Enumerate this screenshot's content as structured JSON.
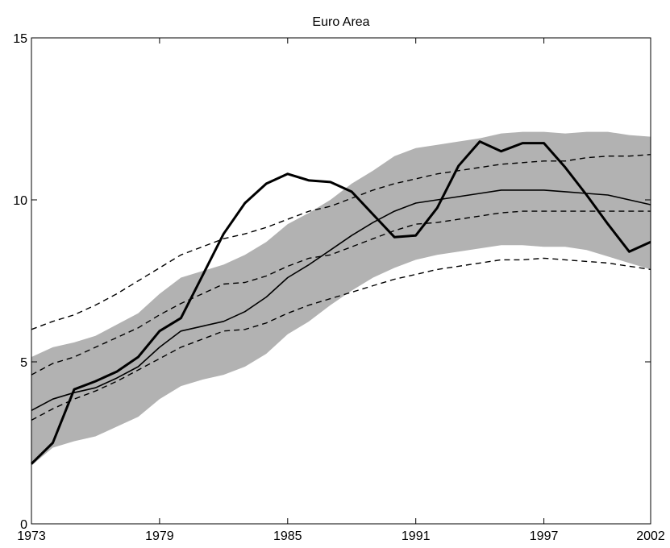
{
  "chart_data": {
    "type": "line",
    "title": "Euro Area",
    "xlabel": "",
    "ylabel": "",
    "xlim": [
      1973,
      2002
    ],
    "ylim": [
      0,
      15
    ],
    "xticks": [
      1973,
      1979,
      1985,
      1991,
      1997,
      2002
    ],
    "yticks": [
      0,
      5,
      10,
      15
    ],
    "grid": false,
    "legend": "none",
    "x": [
      1973,
      1974,
      1975,
      1976,
      1977,
      1978,
      1979,
      1980,
      1981,
      1982,
      1983,
      1984,
      1985,
      1986,
      1987,
      1988,
      1989,
      1990,
      1991,
      1992,
      1993,
      1994,
      1995,
      1996,
      1997,
      1998,
      1999,
      2000,
      2001,
      2002
    ],
    "band": {
      "upper": [
        5.15,
        5.45,
        5.6,
        5.8,
        6.15,
        6.5,
        7.1,
        7.6,
        7.8,
        8.0,
        8.3,
        8.7,
        9.25,
        9.6,
        10.0,
        10.5,
        10.9,
        11.35,
        11.6,
        11.7,
        11.8,
        11.9,
        12.05,
        12.1,
        12.1,
        12.05,
        12.1,
        12.1,
        12.0,
        11.95
      ],
      "lower": [
        1.8,
        2.35,
        2.55,
        2.7,
        3.0,
        3.3,
        3.85,
        4.25,
        4.45,
        4.6,
        4.85,
        5.25,
        5.85,
        6.25,
        6.75,
        7.2,
        7.6,
        7.9,
        8.15,
        8.3,
        8.4,
        8.5,
        8.6,
        8.6,
        8.55,
        8.55,
        8.45,
        8.25,
        8.05,
        7.85
      ]
    },
    "series": [
      {
        "style": "thick",
        "values": [
          1.85,
          2.5,
          4.15,
          4.4,
          4.7,
          5.15,
          5.95,
          6.35,
          7.65,
          8.95,
          9.9,
          10.5,
          10.8,
          10.6,
          10.55,
          10.25,
          9.55,
          8.85,
          8.9,
          9.75,
          11.05,
          11.8,
          11.5,
          11.75,
          11.75,
          11.0,
          10.15,
          9.25,
          8.4,
          8.7
        ]
      },
      {
        "style": "solid",
        "values": [
          3.5,
          3.85,
          4.05,
          4.2,
          4.5,
          4.85,
          5.45,
          5.95,
          6.1,
          6.25,
          6.55,
          7.0,
          7.6,
          8.0,
          8.45,
          8.9,
          9.3,
          9.65,
          9.9,
          10.0,
          10.1,
          10.2,
          10.3,
          10.3,
          10.3,
          10.25,
          10.2,
          10.15,
          10.0,
          9.85
        ]
      },
      {
        "style": "dashed",
        "values": [
          6.0,
          6.25,
          6.45,
          6.75,
          7.1,
          7.5,
          7.9,
          8.3,
          8.55,
          8.8,
          8.95,
          9.15,
          9.4,
          9.65,
          9.8,
          10.05,
          10.3,
          10.5,
          10.65,
          10.8,
          10.9,
          11.0,
          11.1,
          11.15,
          11.2,
          11.2,
          11.3,
          11.35,
          11.35,
          11.4
        ]
      },
      {
        "style": "dashed",
        "values": [
          4.6,
          4.95,
          5.15,
          5.45,
          5.75,
          6.05,
          6.45,
          6.8,
          7.1,
          7.4,
          7.45,
          7.65,
          7.95,
          8.2,
          8.3,
          8.55,
          8.8,
          9.05,
          9.25,
          9.3,
          9.4,
          9.5,
          9.6,
          9.65,
          9.65,
          9.65,
          9.65,
          9.65,
          9.65,
          9.65
        ]
      },
      {
        "style": "dashed",
        "values": [
          3.2,
          3.55,
          3.85,
          4.1,
          4.4,
          4.75,
          5.1,
          5.45,
          5.7,
          5.95,
          6.0,
          6.2,
          6.5,
          6.75,
          6.95,
          7.15,
          7.35,
          7.55,
          7.7,
          7.85,
          7.95,
          8.05,
          8.15,
          8.15,
          8.2,
          8.15,
          8.1,
          8.05,
          7.95,
          7.85
        ]
      }
    ]
  }
}
